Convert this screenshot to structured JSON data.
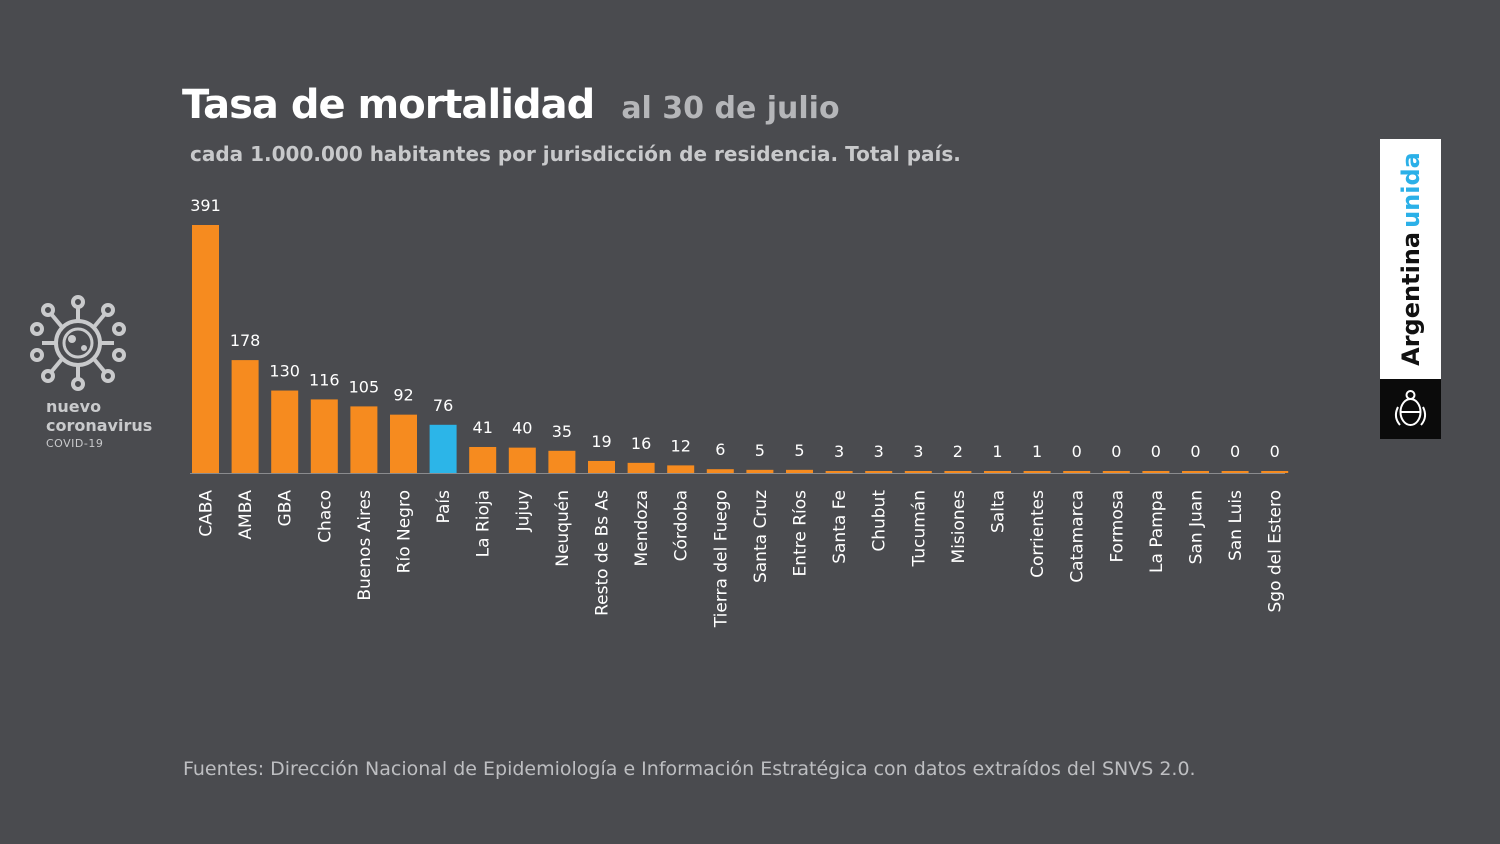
{
  "header": {
    "title": "Tasa de mortalidad",
    "date": "al 30 de julio",
    "subtitle": "cada 1.000.000 habitantes por jurisdicción de residencia. Total país."
  },
  "logo": {
    "line1": "nuevo",
    "line2": "coronavirus",
    "line3": "COVID-19",
    "icon": "virus-icon"
  },
  "brand": {
    "word1": "Argentina",
    "word2": "unida",
    "emblem": "coat-of-arms-icon"
  },
  "footer": "Fuentes: Dirección Nacional de Epidemiología e Información Estratégica con datos extraídos del SNVS 2.0.",
  "colors": {
    "background": "#4a4b4f",
    "bar": "#f68b1f",
    "highlight": "#2cb5e8",
    "text": "#ffffff",
    "axis": "#8a8b8e"
  },
  "chart_data": {
    "type": "bar",
    "title": "Tasa de mortalidad",
    "categories": [
      "CABA",
      "AMBA",
      "GBA",
      "Chaco",
      "Buenos Aires",
      "Río Negro",
      "País",
      "La Rioja",
      "Jujuy",
      "Neuquén",
      "Resto de Bs As",
      "Mendoza",
      "Córdoba",
      "Tierra del Fuego",
      "Santa Cruz",
      "Entre Ríos",
      "Santa Fe",
      "Chubut",
      "Tucumán",
      "Misiones",
      "Salta",
      "Corrientes",
      "Catamarca",
      "Formosa",
      "La Pampa",
      "San Juan",
      "San Luis",
      "Sgo del Estero"
    ],
    "values": [
      391,
      178,
      130,
      116,
      105,
      92,
      76,
      41,
      40,
      35,
      19,
      16,
      12,
      6,
      5,
      5,
      3,
      3,
      3,
      2,
      1,
      1,
      0,
      0,
      0,
      0,
      0,
      0
    ],
    "highlight": "País",
    "ylim": [
      0,
      391
    ],
    "grid": false,
    "legend": "none"
  }
}
